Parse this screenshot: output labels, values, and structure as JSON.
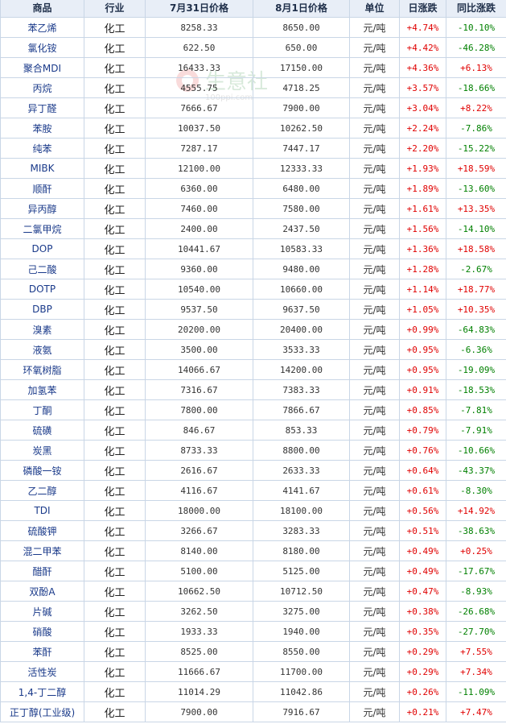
{
  "headers": [
    "商品",
    "行业",
    "7月31日价格",
    "8月1日价格",
    "单位",
    "日涨跌",
    "同比涨跌"
  ],
  "rows": [
    {
      "name": "苯乙烯",
      "industry": "化工",
      "p1": "8258.33",
      "p2": "8650.00",
      "unit": "元/吨",
      "daily": "+4.74%",
      "yoy": "-10.10%"
    },
    {
      "name": "氯化铵",
      "industry": "化工",
      "p1": "622.50",
      "p2": "650.00",
      "unit": "元/吨",
      "daily": "+4.42%",
      "yoy": "-46.28%"
    },
    {
      "name": "聚合MDI",
      "industry": "化工",
      "p1": "16433.33",
      "p2": "17150.00",
      "unit": "元/吨",
      "daily": "+4.36%",
      "yoy": "+6.13%"
    },
    {
      "name": "丙烷",
      "industry": "化工",
      "p1": "4555.75",
      "p2": "4718.25",
      "unit": "元/吨",
      "daily": "+3.57%",
      "yoy": "-18.66%"
    },
    {
      "name": "异丁醛",
      "industry": "化工",
      "p1": "7666.67",
      "p2": "7900.00",
      "unit": "元/吨",
      "daily": "+3.04%",
      "yoy": "+8.22%"
    },
    {
      "name": "苯胺",
      "industry": "化工",
      "p1": "10037.50",
      "p2": "10262.50",
      "unit": "元/吨",
      "daily": "+2.24%",
      "yoy": "-7.86%"
    },
    {
      "name": "纯苯",
      "industry": "化工",
      "p1": "7287.17",
      "p2": "7447.17",
      "unit": "元/吨",
      "daily": "+2.20%",
      "yoy": "-15.22%"
    },
    {
      "name": "MIBK",
      "industry": "化工",
      "p1": "12100.00",
      "p2": "12333.33",
      "unit": "元/吨",
      "daily": "+1.93%",
      "yoy": "+18.59%"
    },
    {
      "name": "顺酐",
      "industry": "化工",
      "p1": "6360.00",
      "p2": "6480.00",
      "unit": "元/吨",
      "daily": "+1.89%",
      "yoy": "-13.60%"
    },
    {
      "name": "异丙醇",
      "industry": "化工",
      "p1": "7460.00",
      "p2": "7580.00",
      "unit": "元/吨",
      "daily": "+1.61%",
      "yoy": "+13.35%"
    },
    {
      "name": "二氯甲烷",
      "industry": "化工",
      "p1": "2400.00",
      "p2": "2437.50",
      "unit": "元/吨",
      "daily": "+1.56%",
      "yoy": "-14.10%"
    },
    {
      "name": "DOP",
      "industry": "化工",
      "p1": "10441.67",
      "p2": "10583.33",
      "unit": "元/吨",
      "daily": "+1.36%",
      "yoy": "+18.58%"
    },
    {
      "name": "己二酸",
      "industry": "化工",
      "p1": "9360.00",
      "p2": "9480.00",
      "unit": "元/吨",
      "daily": "+1.28%",
      "yoy": "-2.67%"
    },
    {
      "name": "DOTP",
      "industry": "化工",
      "p1": "10540.00",
      "p2": "10660.00",
      "unit": "元/吨",
      "daily": "+1.14%",
      "yoy": "+18.77%"
    },
    {
      "name": "DBP",
      "industry": "化工",
      "p1": "9537.50",
      "p2": "9637.50",
      "unit": "元/吨",
      "daily": "+1.05%",
      "yoy": "+10.35%"
    },
    {
      "name": "溴素",
      "industry": "化工",
      "p1": "20200.00",
      "p2": "20400.00",
      "unit": "元/吨",
      "daily": "+0.99%",
      "yoy": "-64.83%"
    },
    {
      "name": "液氨",
      "industry": "化工",
      "p1": "3500.00",
      "p2": "3533.33",
      "unit": "元/吨",
      "daily": "+0.95%",
      "yoy": "-6.36%"
    },
    {
      "name": "环氧树脂",
      "industry": "化工",
      "p1": "14066.67",
      "p2": "14200.00",
      "unit": "元/吨",
      "daily": "+0.95%",
      "yoy": "-19.09%"
    },
    {
      "name": "加氢苯",
      "industry": "化工",
      "p1": "7316.67",
      "p2": "7383.33",
      "unit": "元/吨",
      "daily": "+0.91%",
      "yoy": "-18.53%"
    },
    {
      "name": "丁酮",
      "industry": "化工",
      "p1": "7800.00",
      "p2": "7866.67",
      "unit": "元/吨",
      "daily": "+0.85%",
      "yoy": "-7.81%"
    },
    {
      "name": "硫磺",
      "industry": "化工",
      "p1": "846.67",
      "p2": "853.33",
      "unit": "元/吨",
      "daily": "+0.79%",
      "yoy": "-7.91%"
    },
    {
      "name": "炭黑",
      "industry": "化工",
      "p1": "8733.33",
      "p2": "8800.00",
      "unit": "元/吨",
      "daily": "+0.76%",
      "yoy": "-10.66%"
    },
    {
      "name": "磷酸一铵",
      "industry": "化工",
      "p1": "2616.67",
      "p2": "2633.33",
      "unit": "元/吨",
      "daily": "+0.64%",
      "yoy": "-43.37%"
    },
    {
      "name": "乙二醇",
      "industry": "化工",
      "p1": "4116.67",
      "p2": "4141.67",
      "unit": "元/吨",
      "daily": "+0.61%",
      "yoy": "-8.30%"
    },
    {
      "name": "TDI",
      "industry": "化工",
      "p1": "18000.00",
      "p2": "18100.00",
      "unit": "元/吨",
      "daily": "+0.56%",
      "yoy": "+14.92%"
    },
    {
      "name": "硫酸钾",
      "industry": "化工",
      "p1": "3266.67",
      "p2": "3283.33",
      "unit": "元/吨",
      "daily": "+0.51%",
      "yoy": "-38.63%"
    },
    {
      "name": "混二甲苯",
      "industry": "化工",
      "p1": "8140.00",
      "p2": "8180.00",
      "unit": "元/吨",
      "daily": "+0.49%",
      "yoy": "+0.25%"
    },
    {
      "name": "醋酐",
      "industry": "化工",
      "p1": "5100.00",
      "p2": "5125.00",
      "unit": "元/吨",
      "daily": "+0.49%",
      "yoy": "-17.67%"
    },
    {
      "name": "双酚A",
      "industry": "化工",
      "p1": "10662.50",
      "p2": "10712.50",
      "unit": "元/吨",
      "daily": "+0.47%",
      "yoy": "-8.93%"
    },
    {
      "name": "片碱",
      "industry": "化工",
      "p1": "3262.50",
      "p2": "3275.00",
      "unit": "元/吨",
      "daily": "+0.38%",
      "yoy": "-26.68%"
    },
    {
      "name": "硝酸",
      "industry": "化工",
      "p1": "1933.33",
      "p2": "1940.00",
      "unit": "元/吨",
      "daily": "+0.35%",
      "yoy": "-27.70%"
    },
    {
      "name": "苯酐",
      "industry": "化工",
      "p1": "8525.00",
      "p2": "8550.00",
      "unit": "元/吨",
      "daily": "+0.29%",
      "yoy": "+7.55%"
    },
    {
      "name": "活性炭",
      "industry": "化工",
      "p1": "11666.67",
      "p2": "11700.00",
      "unit": "元/吨",
      "daily": "+0.29%",
      "yoy": "+7.34%"
    },
    {
      "name": "1,4-丁二醇",
      "industry": "化工",
      "p1": "11014.29",
      "p2": "11042.86",
      "unit": "元/吨",
      "daily": "+0.26%",
      "yoy": "-11.09%"
    },
    {
      "name": "正丁醇(工业级)",
      "industry": "化工",
      "p1": "7900.00",
      "p2": "7916.67",
      "unit": "元/吨",
      "daily": "+0.21%",
      "yoy": "+7.47%"
    }
  ],
  "watermark": {
    "text": "生意社",
    "url": "100ppi.com"
  },
  "colors": {
    "up": "#e00000",
    "down": "#008000",
    "header_bg": "#e8eef7",
    "border": "#c9d6e6",
    "name": "#1a3a8a"
  }
}
